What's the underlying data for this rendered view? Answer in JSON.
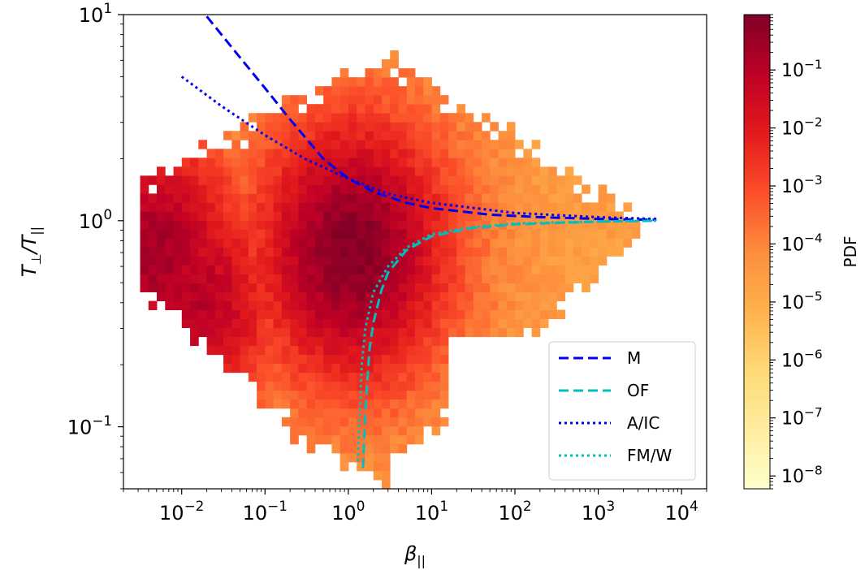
{
  "chart_data": {
    "type": "heatmap",
    "xlabel": "β",
    "xlabel_sub": "||",
    "ylabel_main": "T",
    "ylabel_sub1": "⊥",
    "ylabel_mid": "/T",
    "ylabel_sub2": "||",
    "x_scale": "log",
    "y_scale": "log",
    "xlim": [
      0.002,
      20000
    ],
    "ylim": [
      0.05,
      10
    ],
    "x_ticks": [
      {
        "base": "10",
        "exp": "−2",
        "value": 0.01
      },
      {
        "base": "10",
        "exp": "−1",
        "value": 0.1
      },
      {
        "base": "10",
        "exp": "0",
        "value": 1
      },
      {
        "base": "10",
        "exp": "1",
        "value": 10
      },
      {
        "base": "10",
        "exp": "2",
        "value": 100
      },
      {
        "base": "10",
        "exp": "3",
        "value": 1000
      },
      {
        "base": "10",
        "exp": "4",
        "value": 10000
      }
    ],
    "y_ticks": [
      {
        "base": "10",
        "exp": "−1",
        "value": 0.1
      },
      {
        "base": "10",
        "exp": "0",
        "value": 1
      },
      {
        "base": "10",
        "exp": "1",
        "value": 10
      }
    ],
    "colorbar": {
      "label": "PDF",
      "scale": "log",
      "range": [
        6e-09,
        0.9
      ],
      "colormap": "YlOrRd",
      "ticks": [
        {
          "base": "10",
          "exp": "−1",
          "value": 0.1
        },
        {
          "base": "10",
          "exp": "−2",
          "value": 0.01
        },
        {
          "base": "10",
          "exp": "−3",
          "value": 0.001
        },
        {
          "base": "10",
          "exp": "−4",
          "value": 0.0001
        },
        {
          "base": "10",
          "exp": "−5",
          "value": 1e-05
        },
        {
          "base": "10",
          "exp": "−6",
          "value": 1e-06
        },
        {
          "base": "10",
          "exp": "−7",
          "value": 1e-07
        },
        {
          "base": "10",
          "exp": "−8",
          "value": 1e-08
        }
      ]
    },
    "series": [
      {
        "name": "M",
        "color": "#0000ee",
        "style": "dashed",
        "x": [
          0.02,
          0.05,
          0.1,
          0.2,
          0.5,
          1,
          2,
          5,
          10,
          50,
          200,
          1000,
          5000
        ],
        "y": [
          9.8,
          6.2,
          4.4,
          3.1,
          2.0,
          1.6,
          1.38,
          1.22,
          1.15,
          1.07,
          1.04,
          1.02,
          1.01
        ]
      },
      {
        "name": "OF",
        "color": "#00bfbf",
        "style": "dashed",
        "x": [
          1.5,
          1.6,
          1.8,
          2.0,
          2.5,
          3,
          5,
          10,
          30,
          100,
          1000,
          5000
        ],
        "y": [
          0.063,
          0.12,
          0.24,
          0.32,
          0.46,
          0.56,
          0.72,
          0.84,
          0.92,
          0.96,
          0.99,
          1.0
        ]
      },
      {
        "name": "A/IC",
        "color": "#0000ee",
        "style": "dotted",
        "x": [
          0.01,
          0.03,
          0.1,
          0.3,
          1,
          3,
          10,
          100,
          1000,
          5000
        ],
        "y": [
          5.0,
          3.6,
          2.6,
          2.0,
          1.6,
          1.35,
          1.22,
          1.09,
          1.04,
          1.02
        ]
      },
      {
        "name": "FM/W",
        "color": "#00bfbf",
        "style": "dotted",
        "x": [
          1.3,
          1.35,
          1.45,
          1.6,
          2.0,
          3,
          5,
          10,
          30,
          100,
          1000,
          5000
        ],
        "y": [
          0.068,
          0.1,
          0.2,
          0.3,
          0.45,
          0.6,
          0.74,
          0.86,
          0.93,
          0.97,
          0.99,
          1.0
        ]
      }
    ],
    "legend_position": "lower right",
    "grid": false,
    "density_peaks": [
      {
        "x": 1.1,
        "y": 0.72,
        "pdf": 0.8
      },
      {
        "x": 0.005,
        "y": 0.7,
        "pdf": 0.2
      },
      {
        "x": 0.015,
        "y": 0.4,
        "pdf": 0.1
      }
    ]
  }
}
